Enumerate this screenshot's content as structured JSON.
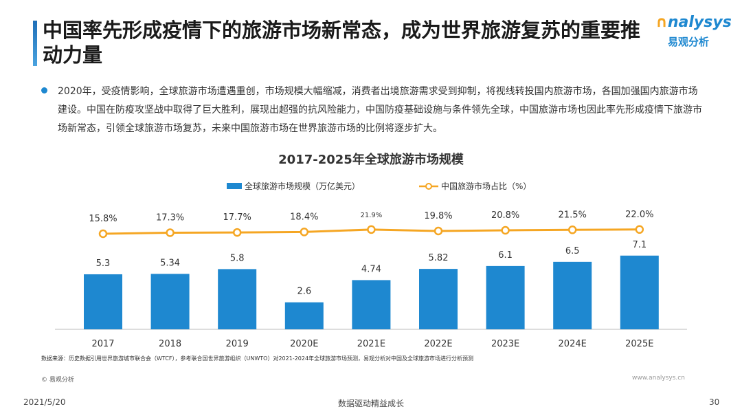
{
  "title": "中国率先形成疫情下的旅游市场新常态，成为世界旅游复苏的重要推动力量",
  "logo": {
    "en": "nalysys",
    "cn": "易观分析"
  },
  "paragraph": "2020年，受疫情影响，全球旅游市场遭遇重创，市场规模大幅缩减，消费者出境旅游需求受到抑制，将视线转投国内旅游市场，各国加强国内旅游市场建设。中国在防疫攻坚战中取得了巨大胜利，展现出超强的抗风险能力，中国防疫基础设施与条件领先全球，中国旅游市场也因此率先形成疫情下旅游市场新常态，引领全球旅游市场复苏，未来中国旅游市场在世界旅游市场的比例将逐步扩大。",
  "chart_data": {
    "type": "bar",
    "title": "2017-2025年全球旅游市场规模",
    "categories": [
      "2017",
      "2018",
      "2019",
      "2020E",
      "2021E",
      "2022E",
      "2023E",
      "2024E",
      "2025E"
    ],
    "series": [
      {
        "name": "全球旅游市场规模（万亿美元）",
        "type": "bar",
        "color": "#1e88d0",
        "values": [
          5.3,
          5.34,
          5.8,
          2.6,
          4.74,
          5.82,
          6.1,
          6.5,
          7.1
        ],
        "labels": [
          "5.3",
          "5.34",
          "5.8",
          "2.6",
          "4.74",
          "5.82",
          "6.1",
          "6.5",
          "7.1"
        ]
      },
      {
        "name": "中国旅游市场占比（%）",
        "type": "line",
        "color": "#f5a623",
        "values": [
          15.8,
          17.3,
          17.7,
          18.4,
          21.9,
          19.8,
          20.8,
          21.5,
          22.0
        ],
        "labels": [
          "15.8%",
          "17.3%",
          "17.7%",
          "18.4%",
          "21.9%",
          "19.8%",
          "20.8%",
          "21.5%",
          "22.0%"
        ]
      }
    ],
    "legend": "top-left",
    "grid": false
  },
  "source": "数据来源：历史数据引用世界旅游城市联合会（WTCF），参考联合国世界旅游组织（UNWTO）对2021-2024年全球旅游市场预测，易观分析对中国及全球旅游市场进行分析预测",
  "copyright": "© 易观分析",
  "site": "www.analysys.cn",
  "footer": {
    "date": "2021/5/20",
    "slogan": "数据驱动精益成长",
    "page": "30"
  }
}
